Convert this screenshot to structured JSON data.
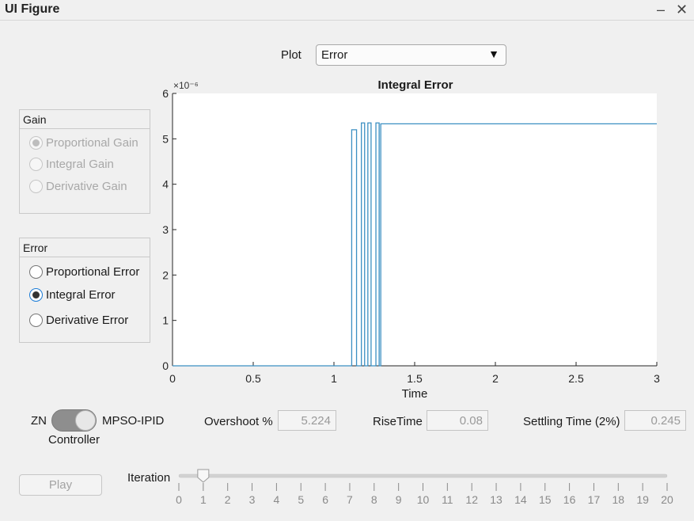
{
  "window": {
    "title": "UI Figure",
    "minimize": "–",
    "close": "✕"
  },
  "plot_selector": {
    "label": "Plot",
    "value": "Error",
    "caret": "▼"
  },
  "gain_panel": {
    "title": "Gain",
    "options": [
      "Proportional Gain",
      "Integral Gain",
      "Derivative Gain"
    ],
    "selected": 0,
    "enabled": false
  },
  "error_panel": {
    "title": "Error",
    "options": [
      "Proportional Error",
      "Integral Error",
      "Derivative Error"
    ],
    "selected": 1,
    "enabled": true
  },
  "controller": {
    "left_label": "ZN",
    "right_label": "MPSO-IPID",
    "caption": "Controller"
  },
  "metrics": {
    "overshoot_label": "Overshoot %",
    "overshoot_value": "5.224",
    "risetime_label": "RiseTime",
    "risetime_value": "0.08",
    "settling_label": "Settling Time (2%)",
    "settling_value": "0.245"
  },
  "play_button": "Play",
  "iteration": {
    "label": "Iteration",
    "min": 0,
    "max": 20,
    "value": 1,
    "ticks": [
      "0",
      "1",
      "2",
      "3",
      "4",
      "5",
      "6",
      "7",
      "8",
      "9",
      "10",
      "11",
      "12",
      "13",
      "14",
      "15",
      "16",
      "17",
      "18",
      "19",
      "20"
    ]
  },
  "colors": {
    "line": "#3b8fc2",
    "accent": "#1a7bd6"
  },
  "chart_data": {
    "type": "line",
    "title": "Integral Error",
    "xlabel": "Time",
    "ylabel": "",
    "exponent_label": "×10⁻⁶",
    "xlim": [
      0,
      3
    ],
    "ylim": [
      0,
      6
    ],
    "xticks": [
      0,
      0.5,
      1,
      1.5,
      2,
      2.5,
      3
    ],
    "xtick_labels": [
      "0",
      "0.5",
      "1",
      "1.5",
      "2",
      "2.5",
      "3"
    ],
    "yticks": [
      0,
      1,
      2,
      3,
      4,
      5,
      6
    ],
    "ytick_labels": [
      "0",
      "1",
      "2",
      "3",
      "4",
      "5",
      "6"
    ],
    "series": [
      {
        "name": "Integral Error",
        "x": [
          0,
          1.11,
          1.11,
          1.14,
          1.14,
          1.17,
          1.17,
          1.19,
          1.19,
          1.21,
          1.21,
          1.23,
          1.23,
          1.26,
          1.26,
          1.28,
          1.28,
          1.29,
          1.29,
          3
        ],
        "y": [
          0,
          0,
          5.2,
          5.2,
          0,
          0,
          5.35,
          5.35,
          0,
          0,
          5.35,
          5.35,
          0,
          0,
          5.35,
          5.35,
          0,
          0,
          5.33,
          5.33
        ]
      }
    ]
  }
}
